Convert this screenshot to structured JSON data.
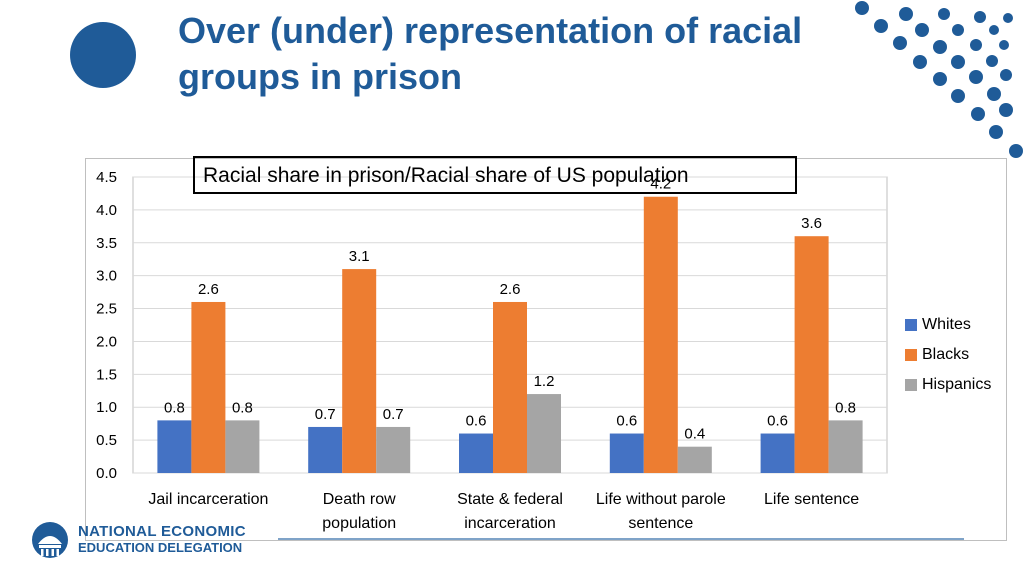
{
  "slide": {
    "title": "Over (under) representation of racial groups in prison"
  },
  "logo": {
    "line1": "NATIONAL ECONOMIC",
    "line2": "EDUCATION DELEGATION"
  },
  "colors": {
    "title": "#1f5b98",
    "Whites": "#4472c4",
    "Blacks": "#ed7d31",
    "Hispanics": "#a5a5a5"
  },
  "chart_data": {
    "type": "bar",
    "title": "Racial share in prison/Racial share of US population",
    "categories": [
      "Jail incarceration",
      "Death row population",
      "State & federal incarceration",
      "Life without parole sentence",
      "Life sentence"
    ],
    "category_lines": [
      [
        "Jail incarceration"
      ],
      [
        "Death row",
        "population"
      ],
      [
        "State & federal",
        "incarceration"
      ],
      [
        "Life without parole",
        "sentence"
      ],
      [
        "Life sentence"
      ]
    ],
    "series": [
      {
        "name": "Whites",
        "values": [
          0.8,
          0.7,
          0.6,
          0.6,
          0.6
        ]
      },
      {
        "name": "Blacks",
        "values": [
          2.6,
          3.1,
          2.6,
          4.2,
          3.6
        ]
      },
      {
        "name": "Hispanics",
        "values": [
          0.8,
          0.7,
          1.2,
          0.4,
          0.8
        ]
      }
    ],
    "ylim": [
      0,
      4.5
    ],
    "yticks": [
      "0.0",
      "0.5",
      "1.0",
      "1.5",
      "2.0",
      "2.5",
      "3.0",
      "3.5",
      "4.0",
      "4.5"
    ],
    "grid": true,
    "legend": "right"
  }
}
